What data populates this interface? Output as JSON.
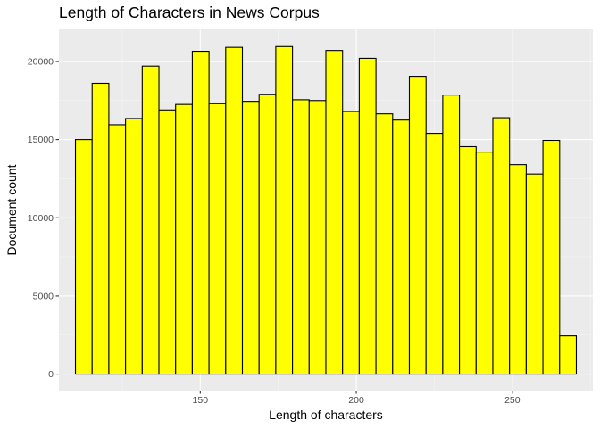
{
  "chart_data": {
    "type": "bar",
    "title": "Length of Characters in News Corpus",
    "xlabel": "Length of characters",
    "ylabel": "Document count",
    "bin_width": 5.35,
    "bins": [
      {
        "x0": 110.0,
        "x1": 115.35,
        "count": 15000
      },
      {
        "x0": 115.35,
        "x1": 120.7,
        "count": 18600
      },
      {
        "x0": 120.7,
        "x1": 126.05,
        "count": 15950
      },
      {
        "x0": 126.05,
        "x1": 131.4,
        "count": 16350
      },
      {
        "x0": 131.4,
        "x1": 136.75,
        "count": 19700
      },
      {
        "x0": 136.75,
        "x1": 142.1,
        "count": 16900
      },
      {
        "x0": 142.1,
        "x1": 147.45,
        "count": 17250
      },
      {
        "x0": 147.45,
        "x1": 152.8,
        "count": 20650
      },
      {
        "x0": 152.8,
        "x1": 158.15,
        "count": 17300
      },
      {
        "x0": 158.15,
        "x1": 163.5,
        "count": 20900
      },
      {
        "x0": 163.5,
        "x1": 168.85,
        "count": 17450
      },
      {
        "x0": 168.85,
        "x1": 174.2,
        "count": 17900
      },
      {
        "x0": 174.2,
        "x1": 179.55,
        "count": 20950
      },
      {
        "x0": 179.55,
        "x1": 184.9,
        "count": 17550
      },
      {
        "x0": 184.9,
        "x1": 190.25,
        "count": 17500
      },
      {
        "x0": 190.25,
        "x1": 195.6,
        "count": 20700
      },
      {
        "x0": 195.6,
        "x1": 200.95,
        "count": 16800
      },
      {
        "x0": 200.95,
        "x1": 206.3,
        "count": 20200
      },
      {
        "x0": 206.3,
        "x1": 211.65,
        "count": 16650
      },
      {
        "x0": 211.65,
        "x1": 217.0,
        "count": 16250
      },
      {
        "x0": 217.0,
        "x1": 222.35,
        "count": 19050
      },
      {
        "x0": 222.35,
        "x1": 227.7,
        "count": 15400
      },
      {
        "x0": 227.7,
        "x1": 233.05,
        "count": 17850
      },
      {
        "x0": 233.05,
        "x1": 238.4,
        "count": 14550
      },
      {
        "x0": 238.4,
        "x1": 243.75,
        "count": 14200
      },
      {
        "x0": 243.75,
        "x1": 249.1,
        "count": 16400
      },
      {
        "x0": 249.1,
        "x1": 254.45,
        "count": 13400
      },
      {
        "x0": 254.45,
        "x1": 259.8,
        "count": 12800
      },
      {
        "x0": 259.8,
        "x1": 265.15,
        "count": 14950
      },
      {
        "x0": 265.15,
        "x1": 270.5,
        "count": 2450
      }
    ],
    "xlim": [
      104.7,
      275.8
    ],
    "ylim": [
      -1050,
      22050
    ],
    "xticks": [
      150,
      200,
      250
    ],
    "yticks": [
      0,
      5000,
      10000,
      15000,
      20000
    ],
    "grid": true,
    "legend": "none",
    "colors": {
      "bar_fill": "#ffff00",
      "bar_outline": "#000000",
      "panel_background": "#ebebeb",
      "grid_major": "#ffffff",
      "grid_minor": "#f5f5f5"
    }
  }
}
